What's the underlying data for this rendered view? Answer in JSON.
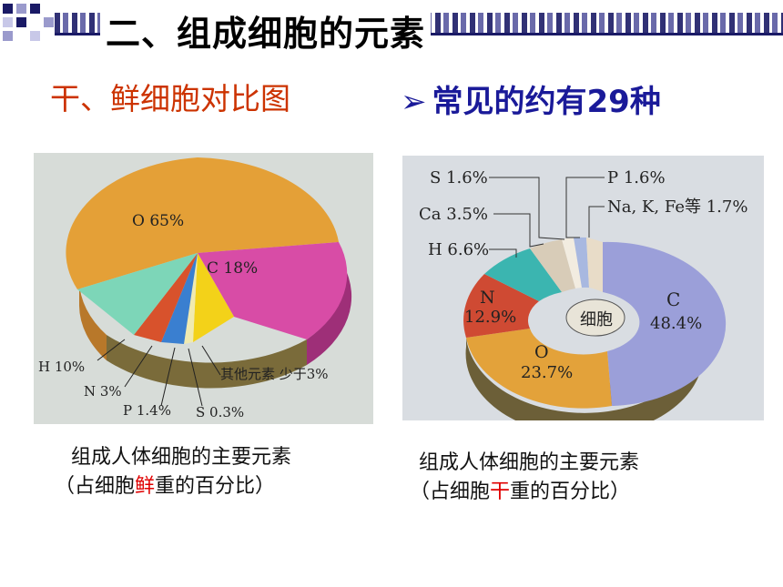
{
  "slide": {
    "title": "二、组成细胞的元素",
    "subtitle_left": "干、鲜细胞对比图",
    "subtitle_right": "常见的约有29种",
    "bullet_icon": "arrow-bullet-icon",
    "colors": {
      "title": "#000000",
      "subtitle_left": "#cc3300",
      "subtitle_right": "#1a1a99",
      "highlight": "#e00000"
    }
  },
  "captions": {
    "left": {
      "line1": "组成人体细胞的主要元素",
      "line2_pre": "（占细胞",
      "line2_hl": "鲜",
      "line2_post": "重的百分比）"
    },
    "right": {
      "line1": "组成人体细胞的主要元素",
      "line2_pre": "（占细胞",
      "line2_hl": "干",
      "line2_post": "重的百分比）"
    }
  },
  "chart_data": [
    {
      "type": "pie",
      "title": "",
      "center_label": "",
      "slices": [
        {
          "label": "O 65%",
          "value": 65,
          "color": "#e4a037"
        },
        {
          "label": "C 18%",
          "value": 18,
          "color": "#d84ca6"
        },
        {
          "label": "其他元素 少于3%",
          "value": 3,
          "color": "#f3d219"
        },
        {
          "label": "S 0.3%",
          "value": 0.3,
          "color": "#f0eab0"
        },
        {
          "label": "P 1.4%",
          "value": 1.4,
          "color": "#3a7fd0"
        },
        {
          "label": "N 3%",
          "value": 3,
          "color": "#d8522c"
        },
        {
          "label": "H 10%",
          "value": 10,
          "color": "#7dd6b8"
        }
      ]
    },
    {
      "type": "pie",
      "title": "",
      "center_label": "细胞",
      "slices": [
        {
          "label": "C 48.4%",
          "name": "C",
          "pct": "48.4%",
          "value": 48.4,
          "color": "#9b9fd9"
        },
        {
          "label": "O 23.7%",
          "name": "O",
          "pct": "23.7%",
          "value": 23.7,
          "color": "#e3a23a"
        },
        {
          "label": "N 12.9%",
          "name": "N",
          "pct": "12.9%",
          "value": 12.9,
          "color": "#cf4a33"
        },
        {
          "label": "H 6.6%",
          "value": 6.6,
          "color": "#3bb5b0"
        },
        {
          "label": "Ca 3.5%",
          "value": 3.5,
          "color": "#d8ccb8"
        },
        {
          "label": "S 1.6%",
          "value": 1.6,
          "color": "#e8e0d0"
        },
        {
          "label": "P 1.6%",
          "value": 1.6,
          "color": "#a8b8e0"
        },
        {
          "label": "Na, K, Fe等 1.7%",
          "value": 1.7,
          "color": "#e8dcc8"
        }
      ]
    }
  ]
}
